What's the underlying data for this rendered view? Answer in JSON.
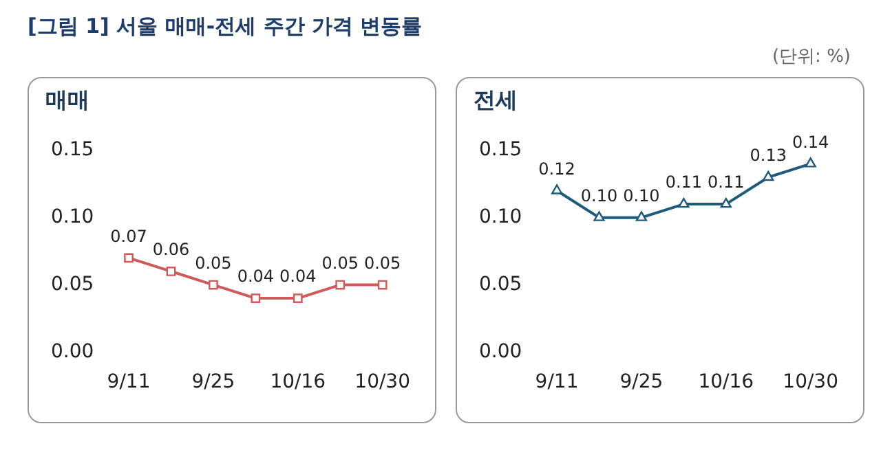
{
  "chart_data": [
    {
      "type": "line",
      "title": "[그림 1] 서울 매매-전세 주간 가격 변동률",
      "subtitle": "매매",
      "categories": [
        "9/11",
        null,
        "9/25",
        null,
        "10/16",
        null,
        "10/30"
      ],
      "series": [
        {
          "color": "#d0595b",
          "values": [
            0.07,
            0.06,
            0.05,
            0.04,
            0.04,
            0.05,
            0.05
          ],
          "value_labels": [
            "0.07",
            "0.06",
            "0.05",
            "0.04",
            "0.04",
            "0.05",
            "0.05"
          ]
        }
      ],
      "ylim": [
        0,
        0.15
      ],
      "yticks": [
        {
          "value": 0,
          "label": "0.00"
        },
        {
          "value": 0.05,
          "label": "0.05"
        },
        {
          "value": 0.1,
          "label": "0.10"
        },
        {
          "value": 0.15,
          "label": "0.15"
        }
      ],
      "grid": false,
      "legend": false,
      "marker": "square",
      "line_style": "solid"
    },
    {
      "type": "line",
      "subtitle": "전세",
      "annotations": [
        "(단위: %)"
      ],
      "categories": [
        "9/11",
        null,
        "9/25",
        null,
        "10/16",
        null,
        "10/30"
      ],
      "series": [
        {
          "color": "#1e5a7c",
          "values": [
            0.12,
            0.1,
            0.1,
            0.11,
            0.11,
            0.13,
            0.14
          ],
          "value_labels": [
            "0.12",
            "0.10",
            "0.10",
            "0.11",
            "0.11",
            "0.13",
            "0.14"
          ]
        }
      ],
      "ylim": [
        0,
        0.15
      ],
      "yticks": [
        {
          "value": 0,
          "label": "0.00"
        },
        {
          "value": 0.05,
          "label": "0.05"
        },
        {
          "value": 0.1,
          "label": "0.10"
        },
        {
          "value": 0.15,
          "label": "0.15"
        }
      ],
      "grid": false,
      "legend": false,
      "marker": "triangle",
      "line_style": "solid"
    }
  ]
}
